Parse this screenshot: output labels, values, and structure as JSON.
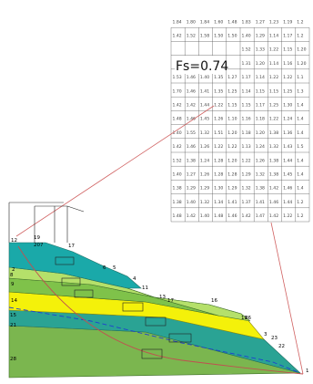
{
  "fs_label": "Fs=0.74",
  "colors": {
    "layer_teal": "#1aa9a9",
    "layer_lightgreen": "#b5e06a",
    "layer_midgreen": "#7fc24a",
    "layer_yellow": "#f4f10a",
    "layer_teal2": "#2aa394",
    "layer_bottom": "#7bb64f",
    "circle_line": "#c05050",
    "water_line": "#1f3fd0",
    "grid_line": "#555555"
  },
  "grid": {
    "rows": [
      [
        "1.84",
        "1.80",
        "1.84",
        "1.60",
        "1.48",
        "1.83",
        "1.27",
        "1.23",
        "1.19",
        "1.2"
      ],
      [
        "1.42",
        "1.52",
        "1.58",
        "1.50",
        "1.50",
        "1.40",
        "1.29",
        "1.14",
        "1.17",
        "1.2"
      ],
      [
        "",
        "",
        "",
        "",
        "",
        "1.52",
        "1.33",
        "1.22",
        "1.15",
        "1.20"
      ],
      [
        "",
        "",
        "",
        "",
        "",
        "1.31",
        "1.20",
        "1.14",
        "1.16",
        "1.20"
      ],
      [
        "1.53",
        "1.46",
        "1.40",
        "1.35",
        "1.27",
        "1.17",
        "1.14",
        "1.22",
        "1.22",
        "1.1"
      ],
      [
        "1.70",
        "1.46",
        "1.41",
        "1.35",
        "1.25",
        "1.14",
        "1.15",
        "1.15",
        "1.25",
        "1.3"
      ],
      [
        "1.42",
        "1.42",
        "1.44",
        "1.22",
        "1.15",
        "1.15",
        "1.17",
        "1.25",
        "1.30",
        "1.4"
      ],
      [
        "1.48",
        "1.46",
        "1.45",
        "1.26",
        "1.10",
        "1.16",
        "1.18",
        "1.22",
        "1.24",
        "1.4"
      ],
      [
        "1.40",
        "1.55",
        "1.32",
        "1.51",
        "1.20",
        "1.18",
        "1.20",
        "1.38",
        "1.36",
        "1.4"
      ],
      [
        "1.42",
        "1.46",
        "1.26",
        "1.22",
        "1.22",
        "1.13",
        "1.24",
        "1.32",
        "1.43",
        "1.5"
      ],
      [
        "1.52",
        "1.38",
        "1.24",
        "1.28",
        "1.20",
        "1.22",
        "1.26",
        "1.38",
        "1.44",
        "1.4"
      ],
      [
        "1.40",
        "1.27",
        "1.26",
        "1.28",
        "1.28",
        "1.29",
        "1.32",
        "1.38",
        "1.45",
        "1.4"
      ],
      [
        "1.38",
        "1.29",
        "1.29",
        "1.30",
        "1.29",
        "1.32",
        "1.38",
        "1.42",
        "1.46",
        "1.4"
      ],
      [
        "1.38",
        "1.40",
        "1.32",
        "1.34",
        "1.41",
        "1.37",
        "1.41",
        "1.46",
        "1.44",
        "1.2"
      ],
      [
        "1.48",
        "1.42",
        "1.40",
        "1.48",
        "1.46",
        "1.42",
        "1.47",
        "1.42",
        "1.22",
        "1.2"
      ]
    ]
  },
  "node_labels": [
    {
      "id": "n12",
      "text": "12"
    },
    {
      "id": "n19",
      "text": "19"
    },
    {
      "id": "n20",
      "text": "20"
    },
    {
      "id": "n7",
      "text": "7"
    },
    {
      "id": "n17a",
      "text": "17"
    },
    {
      "id": "n6",
      "text": "6"
    },
    {
      "id": "n5",
      "text": "5"
    },
    {
      "id": "n4",
      "text": "4"
    },
    {
      "id": "n2",
      "text": "2"
    },
    {
      "id": "n11",
      "text": "11"
    },
    {
      "id": "n13",
      "text": "13"
    },
    {
      "id": "n17b",
      "text": "17"
    },
    {
      "id": "n14",
      "text": "14"
    },
    {
      "id": "n16",
      "text": "16"
    },
    {
      "id": "n18",
      "text": "18"
    },
    {
      "id": "n15",
      "text": "15"
    },
    {
      "id": "n21",
      "text": "21"
    },
    {
      "id": "n26",
      "text": "26"
    },
    {
      "id": "n23",
      "text": "23"
    },
    {
      "id": "n22",
      "text": "22"
    },
    {
      "id": "n28",
      "text": "28"
    },
    {
      "id": "n1",
      "text": "1"
    },
    {
      "id": "n9",
      "text": "9"
    },
    {
      "id": "n8",
      "text": "8"
    },
    {
      "id": "n3",
      "text": "3"
    }
  ]
}
